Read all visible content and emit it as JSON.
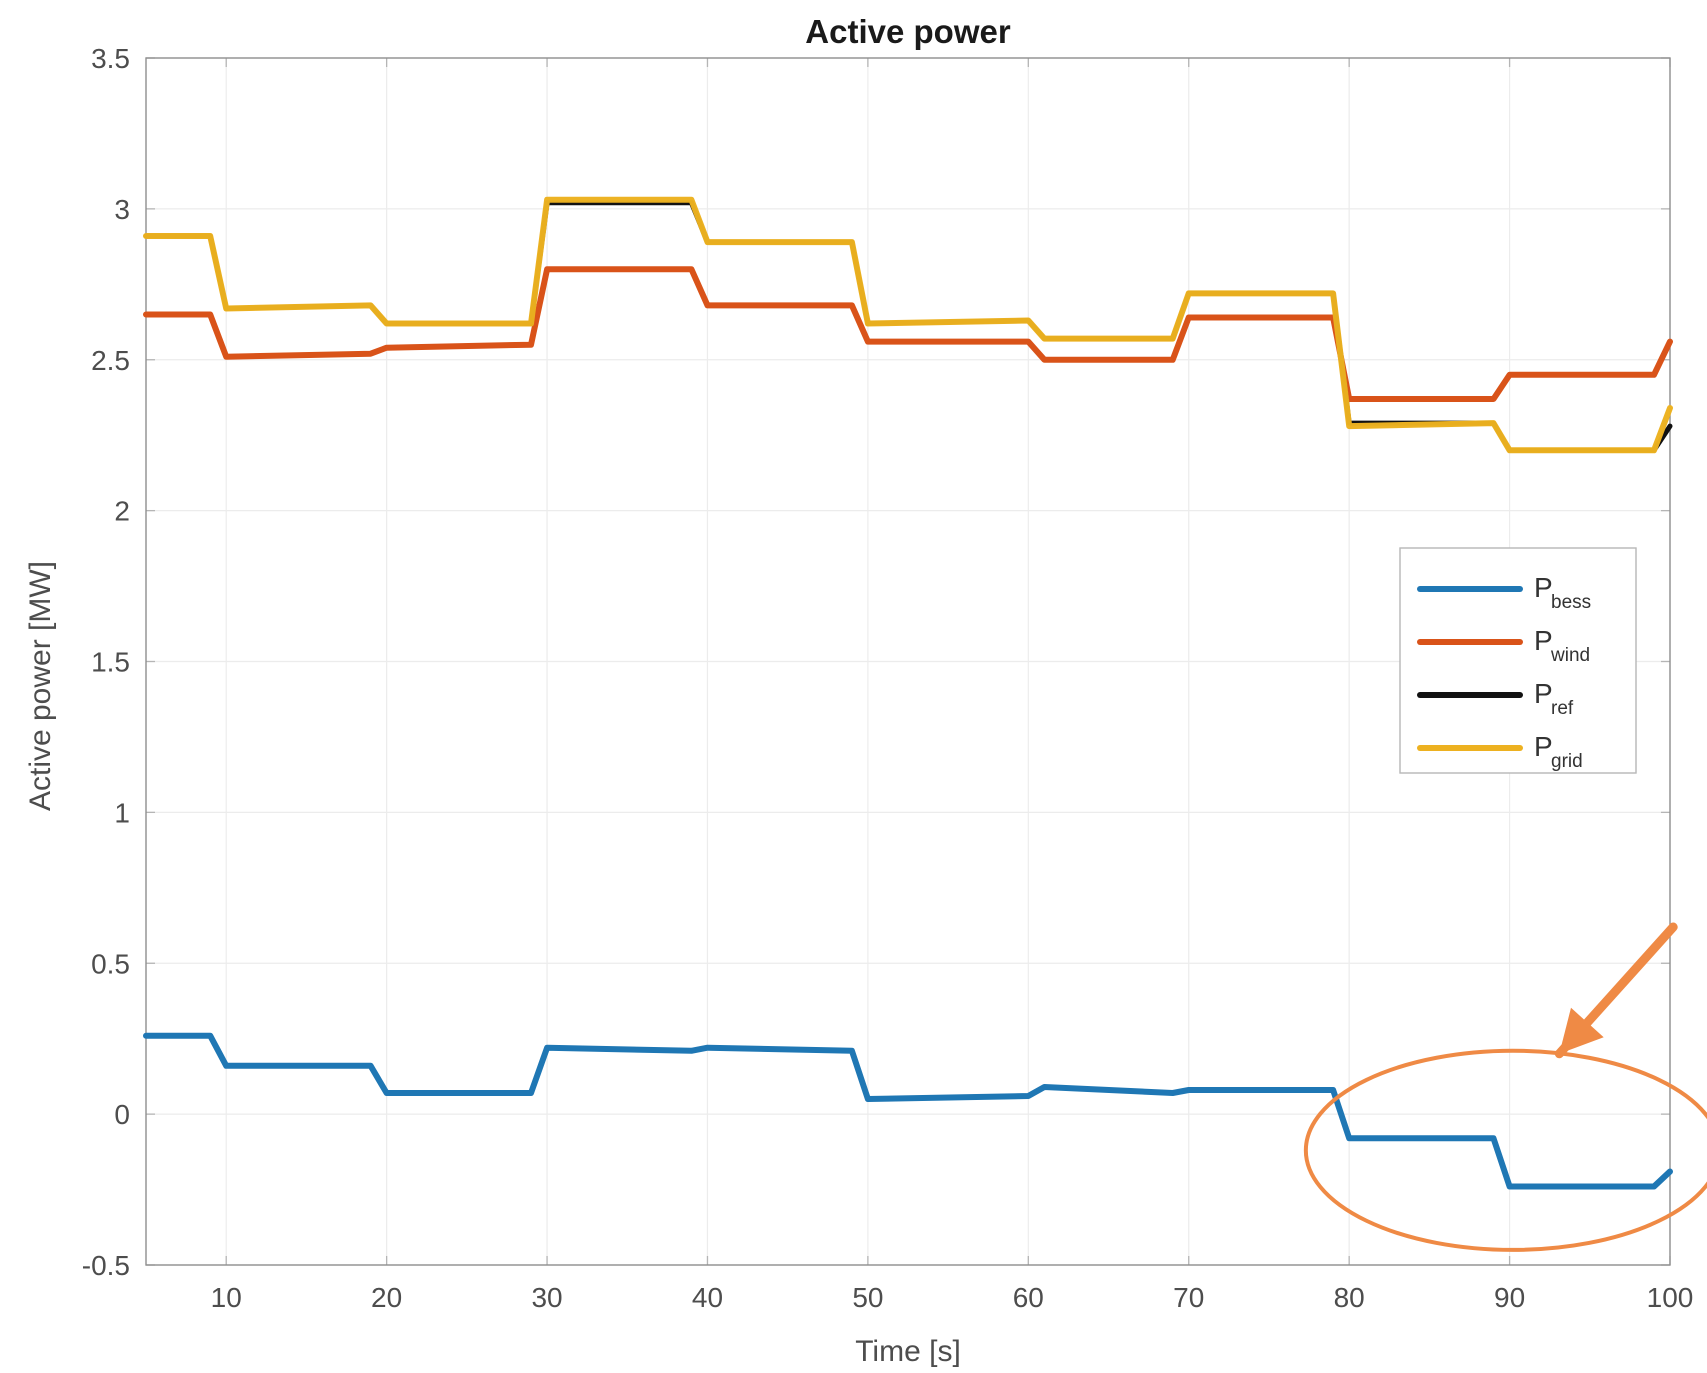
{
  "chart_data": {
    "type": "line",
    "title": "Active power",
    "xlabel": "Time [s]",
    "ylabel": "Active power [MW]",
    "xlim": [
      5,
      100
    ],
    "ylim": [
      -0.5,
      3.5
    ],
    "xticks": [
      "10",
      "20",
      "30",
      "40",
      "50",
      "60",
      "70",
      "80",
      "90",
      "100"
    ],
    "yticks": [
      "-0.5",
      "0",
      "0.5",
      "1",
      "1.5",
      "2",
      "2.5",
      "3",
      "3.5"
    ],
    "grid": true,
    "legend_position": "right",
    "series": [
      {
        "name": "P",
        "subscript": "bess",
        "color": "#1f77b4",
        "x": [
          5,
          9,
          10,
          19,
          20,
          29,
          30,
          39,
          40,
          49,
          50,
          60,
          61,
          69,
          70,
          79,
          80,
          89,
          90,
          99,
          100
        ],
        "y": [
          0.26,
          0.26,
          0.16,
          0.16,
          0.07,
          0.07,
          0.22,
          0.21,
          0.22,
          0.21,
          0.05,
          0.06,
          0.09,
          0.07,
          0.08,
          0.08,
          -0.08,
          -0.08,
          -0.24,
          -0.24,
          -0.19
        ]
      },
      {
        "name": "P",
        "subscript": "wind",
        "color": "#d95319",
        "x": [
          5,
          9,
          10,
          19,
          20,
          29,
          30,
          39,
          40,
          49,
          50,
          60,
          61,
          69,
          70,
          79,
          80,
          89,
          90,
          99,
          100
        ],
        "y": [
          2.65,
          2.65,
          2.51,
          2.52,
          2.54,
          2.55,
          2.8,
          2.8,
          2.68,
          2.68,
          2.56,
          2.56,
          2.5,
          2.5,
          2.64,
          2.64,
          2.37,
          2.37,
          2.45,
          2.45,
          2.56
        ]
      },
      {
        "name": "P",
        "subscript": "ref",
        "color": "#111111",
        "x": [
          5,
          9,
          10,
          19,
          20,
          29,
          30,
          39,
          40,
          49,
          50,
          60,
          61,
          69,
          70,
          79,
          80,
          89,
          90,
          99,
          100
        ],
        "y": [
          2.91,
          2.91,
          2.67,
          2.68,
          2.62,
          2.62,
          3.02,
          3.02,
          2.89,
          2.89,
          2.62,
          2.63,
          2.57,
          2.57,
          2.72,
          2.72,
          2.29,
          2.29,
          2.2,
          2.2,
          2.28
        ]
      },
      {
        "name": "P",
        "subscript": "grid",
        "color": "#edb120",
        "x": [
          5,
          9,
          10,
          19,
          20,
          29,
          30,
          39,
          40,
          49,
          50,
          60,
          61,
          69,
          70,
          79,
          80,
          89,
          90,
          99,
          100
        ],
        "y": [
          2.91,
          2.91,
          2.67,
          2.68,
          2.62,
          2.62,
          3.03,
          3.03,
          2.89,
          2.89,
          2.62,
          2.63,
          2.57,
          2.57,
          2.72,
          2.72,
          2.28,
          2.29,
          2.2,
          2.2,
          2.34
        ]
      }
    ],
    "annotations": [
      {
        "type": "ellipse",
        "color": "#ef8a45",
        "center": [
          90.2,
          -0.12
        ],
        "radius": [
          12.9,
          0.33
        ]
      },
      {
        "type": "arrow",
        "color": "#ef8a45",
        "from": [
          100.2,
          0.62
        ],
        "to": [
          93.1,
          0.2
        ]
      }
    ]
  }
}
